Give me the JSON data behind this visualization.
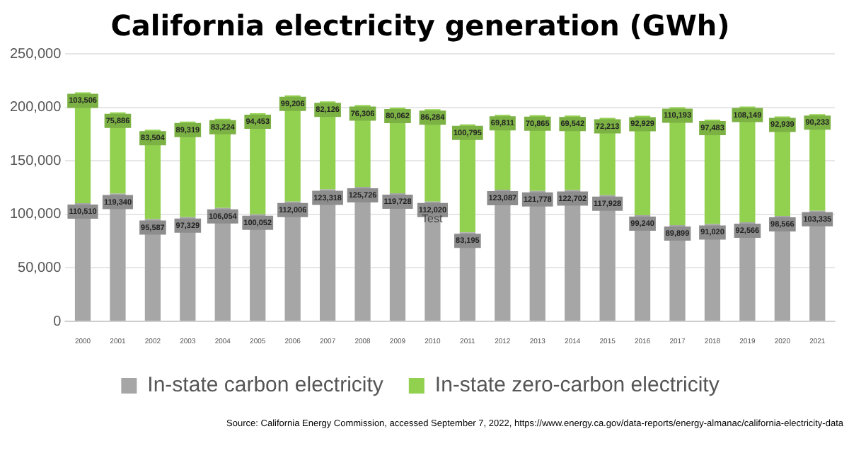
{
  "chart_data": {
    "type": "bar",
    "title": "California electricity generation (GWh)",
    "stacked": true,
    "categories": [
      "2000",
      "2001",
      "2002",
      "2003",
      "2004",
      "2005",
      "2006",
      "2007",
      "2008",
      "2009",
      "2010",
      "2011",
      "2012",
      "2013",
      "2014",
      "2015",
      "2016",
      "2017",
      "2018",
      "2019",
      "2020",
      "2021"
    ],
    "series": [
      {
        "name": "In-state carbon electricity",
        "color": "#a6a6a6",
        "values": [
          110510,
          119340,
          95587,
          97329,
          106054,
          100052,
          112006,
          123318,
          125726,
          119728,
          112020,
          83195,
          123087,
          121778,
          122702,
          117928,
          99240,
          89899,
          91020,
          92566,
          98566,
          103335
        ],
        "value_labels": [
          "110,510",
          "119,340",
          "95,587",
          "97,329",
          "106,054",
          "100,052",
          "112,006",
          "123,318",
          "125,726",
          "119,728",
          "112,020",
          "83,195",
          "123,087",
          "121,778",
          "122,702",
          "117,928",
          "99,240",
          "89,899",
          "91,020",
          "92,566",
          "98,566",
          "103,335"
        ]
      },
      {
        "name": "In-state zero-carbon electricity",
        "color": "#92d050",
        "values": [
          103506,
          75886,
          83504,
          89319,
          83224,
          94453,
          99206,
          82126,
          76306,
          80062,
          86284,
          100795,
          69811,
          70865,
          69542,
          72213,
          92929,
          110193,
          97483,
          108149,
          92939,
          90233
        ],
        "value_labels": [
          "103,506",
          "75,886",
          "83,504",
          "89,319",
          "83,224",
          "94,453",
          "99,206",
          "82,126",
          "76,306",
          "80,062",
          "86,284",
          "100,795",
          "69,811",
          "70,865",
          "69,542",
          "72,213",
          "92,929",
          "110,193",
          "97,483",
          "108,149",
          "92,939",
          "90,233"
        ]
      }
    ],
    "ylim": [
      0,
      250000
    ],
    "yticks": [
      {
        "value": 0,
        "label": "0"
      },
      {
        "value": 50000,
        "label": "50,000"
      },
      {
        "value": 100000,
        "label": "100,000"
      },
      {
        "value": 150000,
        "label": "150,000"
      },
      {
        "value": 200000,
        "label": "200,000"
      },
      {
        "value": 250000,
        "label": "250,000"
      }
    ],
    "grid": "y",
    "legend": "bottom",
    "annotations": [
      "Test",
      "Source: California Energy Commission,  accessed September 7, 2022, https://www.energy.ca.gov/data-reports/energy-almanac/california-electricity-data"
    ]
  }
}
